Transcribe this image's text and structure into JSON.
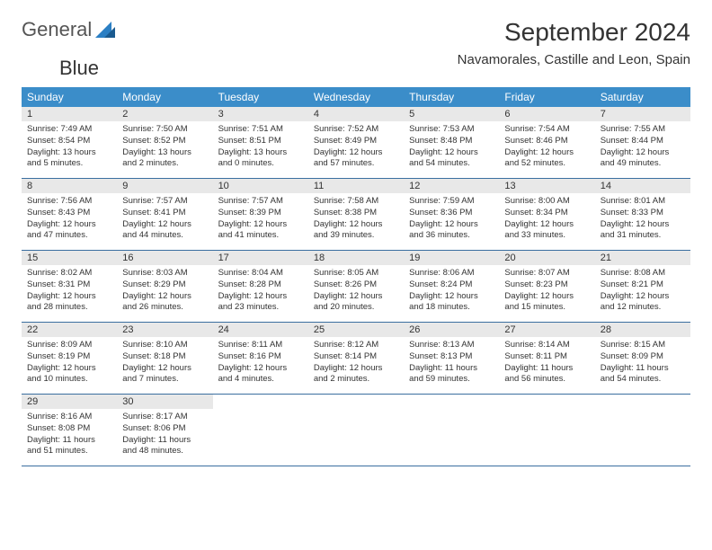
{
  "logo": {
    "text1": "General",
    "text2": "Blue"
  },
  "title": "September 2024",
  "location": "Navamorales, Castille and Leon, Spain",
  "colors": {
    "header_bg": "#3b8dc9",
    "header_text": "#ffffff",
    "daynum_bg": "#e8e8e8",
    "border": "#3b6fa0",
    "text": "#333333",
    "logo_gray": "#555555",
    "logo_blue": "#2b7fc4"
  },
  "day_names": [
    "Sunday",
    "Monday",
    "Tuesday",
    "Wednesday",
    "Thursday",
    "Friday",
    "Saturday"
  ],
  "weeks": [
    [
      {
        "n": "1",
        "sr": "7:49 AM",
        "ss": "8:54 PM",
        "dl": "13 hours and 5 minutes."
      },
      {
        "n": "2",
        "sr": "7:50 AM",
        "ss": "8:52 PM",
        "dl": "13 hours and 2 minutes."
      },
      {
        "n": "3",
        "sr": "7:51 AM",
        "ss": "8:51 PM",
        "dl": "13 hours and 0 minutes."
      },
      {
        "n": "4",
        "sr": "7:52 AM",
        "ss": "8:49 PM",
        "dl": "12 hours and 57 minutes."
      },
      {
        "n": "5",
        "sr": "7:53 AM",
        "ss": "8:48 PM",
        "dl": "12 hours and 54 minutes."
      },
      {
        "n": "6",
        "sr": "7:54 AM",
        "ss": "8:46 PM",
        "dl": "12 hours and 52 minutes."
      },
      {
        "n": "7",
        "sr": "7:55 AM",
        "ss": "8:44 PM",
        "dl": "12 hours and 49 minutes."
      }
    ],
    [
      {
        "n": "8",
        "sr": "7:56 AM",
        "ss": "8:43 PM",
        "dl": "12 hours and 47 minutes."
      },
      {
        "n": "9",
        "sr": "7:57 AM",
        "ss": "8:41 PM",
        "dl": "12 hours and 44 minutes."
      },
      {
        "n": "10",
        "sr": "7:57 AM",
        "ss": "8:39 PM",
        "dl": "12 hours and 41 minutes."
      },
      {
        "n": "11",
        "sr": "7:58 AM",
        "ss": "8:38 PM",
        "dl": "12 hours and 39 minutes."
      },
      {
        "n": "12",
        "sr": "7:59 AM",
        "ss": "8:36 PM",
        "dl": "12 hours and 36 minutes."
      },
      {
        "n": "13",
        "sr": "8:00 AM",
        "ss": "8:34 PM",
        "dl": "12 hours and 33 minutes."
      },
      {
        "n": "14",
        "sr": "8:01 AM",
        "ss": "8:33 PM",
        "dl": "12 hours and 31 minutes."
      }
    ],
    [
      {
        "n": "15",
        "sr": "8:02 AM",
        "ss": "8:31 PM",
        "dl": "12 hours and 28 minutes."
      },
      {
        "n": "16",
        "sr": "8:03 AM",
        "ss": "8:29 PM",
        "dl": "12 hours and 26 minutes."
      },
      {
        "n": "17",
        "sr": "8:04 AM",
        "ss": "8:28 PM",
        "dl": "12 hours and 23 minutes."
      },
      {
        "n": "18",
        "sr": "8:05 AM",
        "ss": "8:26 PM",
        "dl": "12 hours and 20 minutes."
      },
      {
        "n": "19",
        "sr": "8:06 AM",
        "ss": "8:24 PM",
        "dl": "12 hours and 18 minutes."
      },
      {
        "n": "20",
        "sr": "8:07 AM",
        "ss": "8:23 PM",
        "dl": "12 hours and 15 minutes."
      },
      {
        "n": "21",
        "sr": "8:08 AM",
        "ss": "8:21 PM",
        "dl": "12 hours and 12 minutes."
      }
    ],
    [
      {
        "n": "22",
        "sr": "8:09 AM",
        "ss": "8:19 PM",
        "dl": "12 hours and 10 minutes."
      },
      {
        "n": "23",
        "sr": "8:10 AM",
        "ss": "8:18 PM",
        "dl": "12 hours and 7 minutes."
      },
      {
        "n": "24",
        "sr": "8:11 AM",
        "ss": "8:16 PM",
        "dl": "12 hours and 4 minutes."
      },
      {
        "n": "25",
        "sr": "8:12 AM",
        "ss": "8:14 PM",
        "dl": "12 hours and 2 minutes."
      },
      {
        "n": "26",
        "sr": "8:13 AM",
        "ss": "8:13 PM",
        "dl": "11 hours and 59 minutes."
      },
      {
        "n": "27",
        "sr": "8:14 AM",
        "ss": "8:11 PM",
        "dl": "11 hours and 56 minutes."
      },
      {
        "n": "28",
        "sr": "8:15 AM",
        "ss": "8:09 PM",
        "dl": "11 hours and 54 minutes."
      }
    ],
    [
      {
        "n": "29",
        "sr": "8:16 AM",
        "ss": "8:08 PM",
        "dl": "11 hours and 51 minutes."
      },
      {
        "n": "30",
        "sr": "8:17 AM",
        "ss": "8:06 PM",
        "dl": "11 hours and 48 minutes."
      },
      null,
      null,
      null,
      null,
      null
    ]
  ],
  "labels": {
    "sunrise": "Sunrise:",
    "sunset": "Sunset:",
    "daylight": "Daylight:"
  }
}
